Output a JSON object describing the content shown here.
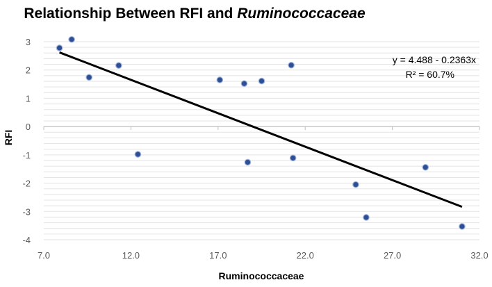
{
  "chart_data": {
    "type": "scatter",
    "title_main": "Relationship Between RFI and ",
    "title_italic": "Ruminococcaceae",
    "xlabel": "Ruminococcaceae",
    "ylabel": "RFI",
    "xlim": [
      7.0,
      32.0
    ],
    "ylim": [
      -4,
      3
    ],
    "x_ticks": [
      "7.0",
      "12.0",
      "17.0",
      "22.0",
      "27.0",
      "32.0"
    ],
    "y_ticks": [
      "3",
      "2",
      "1",
      "0",
      "-1",
      "-2",
      "-3",
      "-4"
    ],
    "points": [
      {
        "x": 7.9,
        "y": 2.78
      },
      {
        "x": 8.6,
        "y": 3.08
      },
      {
        "x": 9.6,
        "y": 1.74
      },
      {
        "x": 11.3,
        "y": 2.16
      },
      {
        "x": 12.4,
        "y": -0.98
      },
      {
        "x": 17.1,
        "y": 1.65
      },
      {
        "x": 18.5,
        "y": 1.52
      },
      {
        "x": 18.7,
        "y": -1.26
      },
      {
        "x": 19.5,
        "y": 1.61
      },
      {
        "x": 21.2,
        "y": 2.17
      },
      {
        "x": 21.3,
        "y": -1.11
      },
      {
        "x": 24.9,
        "y": -2.05
      },
      {
        "x": 25.5,
        "y": -3.21
      },
      {
        "x": 28.9,
        "y": -1.44
      },
      {
        "x": 31.0,
        "y": -3.53
      }
    ],
    "trendline": {
      "intercept": 4.488,
      "slope": -0.2363,
      "x_start": 7.9,
      "x_end": 31.0
    },
    "equation_label": "y = 4.488 - 0.2363x",
    "r2_label": "R² = 60.7%",
    "grid": "minor-horizontal",
    "point_color": "#2f4f94",
    "trend_color": "#000000"
  }
}
